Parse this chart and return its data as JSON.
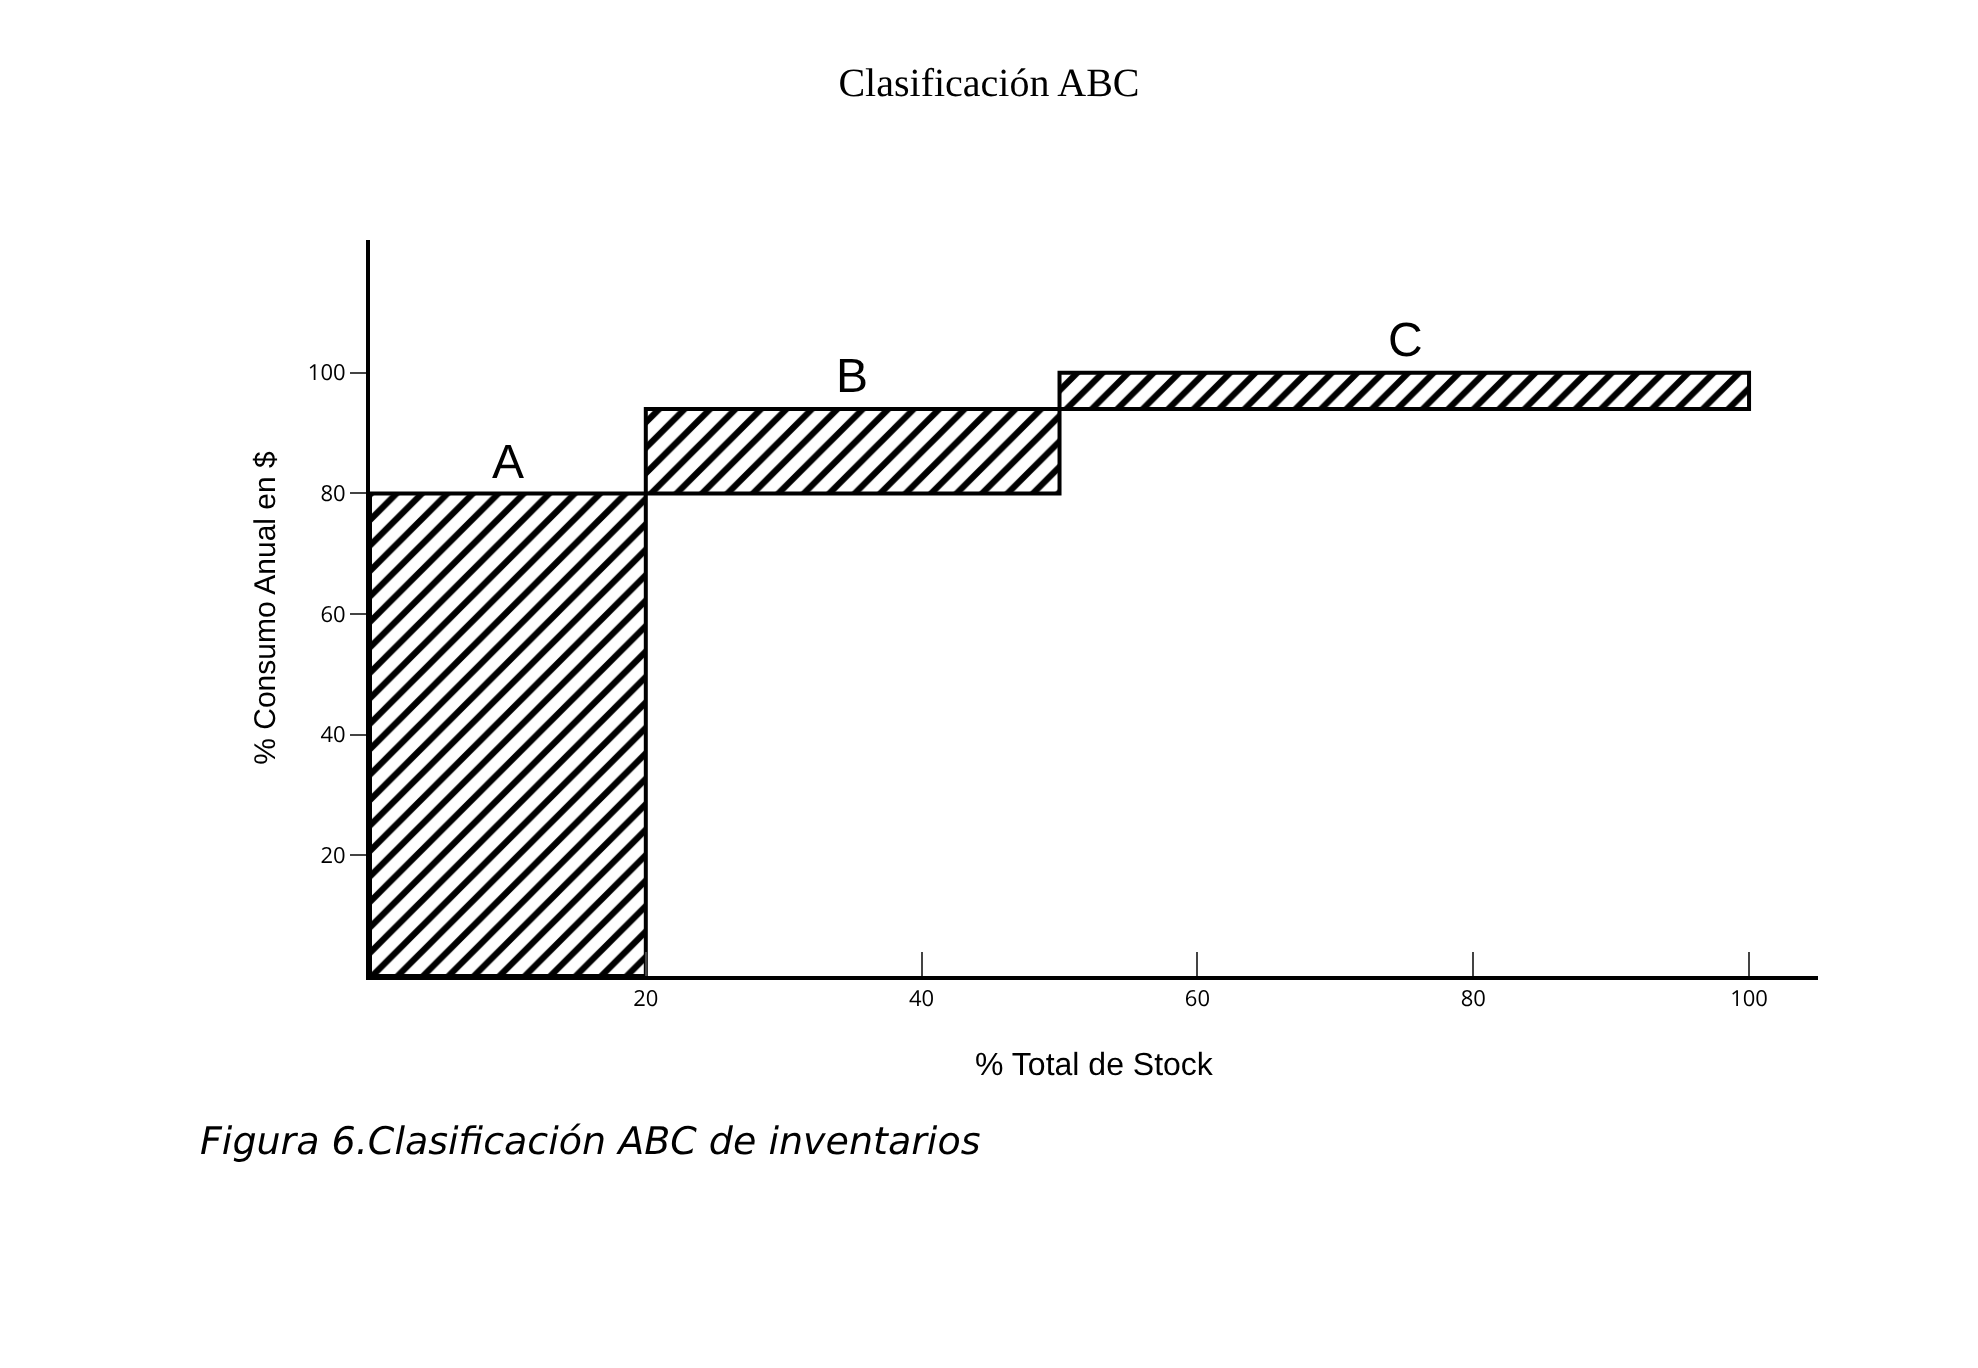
{
  "chart_data": {
    "type": "histogram",
    "title": "Clasificación ABC",
    "xlabel": "% Total de Stock",
    "ylabel": "% Consumo Anual en $",
    "bins": [
      0,
      20,
      50,
      100
    ],
    "values": [
      80,
      14,
      6
    ],
    "base": [
      0,
      80,
      94
    ],
    "color": "#000000",
    "xlim": [
      0,
      105
    ],
    "xticks": [
      20,
      40,
      60,
      80,
      100
    ],
    "ylim": [
      0,
      122
    ],
    "yticks": [
      20,
      40,
      60,
      80,
      100
    ],
    "grid": false,
    "legend": false,
    "annotations": [
      {
        "text": "A",
        "x": 10,
        "y": 80
      },
      {
        "text": "B",
        "x": 35,
        "y": 94
      },
      {
        "text": "C",
        "x": 75,
        "y": 100
      },
      "Figura 6.Clasificación ABC de inventarios"
    ]
  }
}
